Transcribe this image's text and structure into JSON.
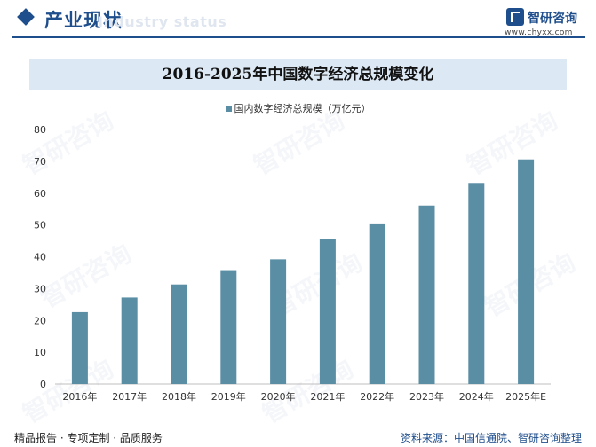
{
  "header": {
    "title": "产业现状",
    "subtitle": "Industry status",
    "brand_name": "智研咨询",
    "brand_url": "www.chyxx.com"
  },
  "watermark": {
    "text": "智研咨询"
  },
  "colors": {
    "accent": "#1f4e8c",
    "bar": "#5a8ea5",
    "band": "#dce8f4"
  },
  "chart_data": {
    "type": "bar",
    "title": "2016-2025年中国数字经济总规模变化",
    "categories": [
      "2016年",
      "2017年",
      "2018年",
      "2019年",
      "2020年",
      "2021年",
      "2022年",
      "2023年",
      "2024年",
      "2025年E"
    ],
    "series": [
      {
        "name": "国内数字经济总规模（万亿元）",
        "values": [
          22.6,
          27.2,
          31.3,
          35.8,
          39.2,
          45.5,
          50.2,
          56.1,
          63.2,
          70.6
        ]
      }
    ],
    "ylim": [
      0,
      80
    ],
    "yticks": [
      0,
      10,
      20,
      30,
      40,
      50,
      60,
      70,
      80
    ],
    "xlabel": "",
    "ylabel": "",
    "grid": false,
    "legend": "top"
  },
  "footer": {
    "left": "精品报告 · 专项定制 · 品质服务",
    "right": "资料来源：中国信通院、智研咨询整理"
  }
}
